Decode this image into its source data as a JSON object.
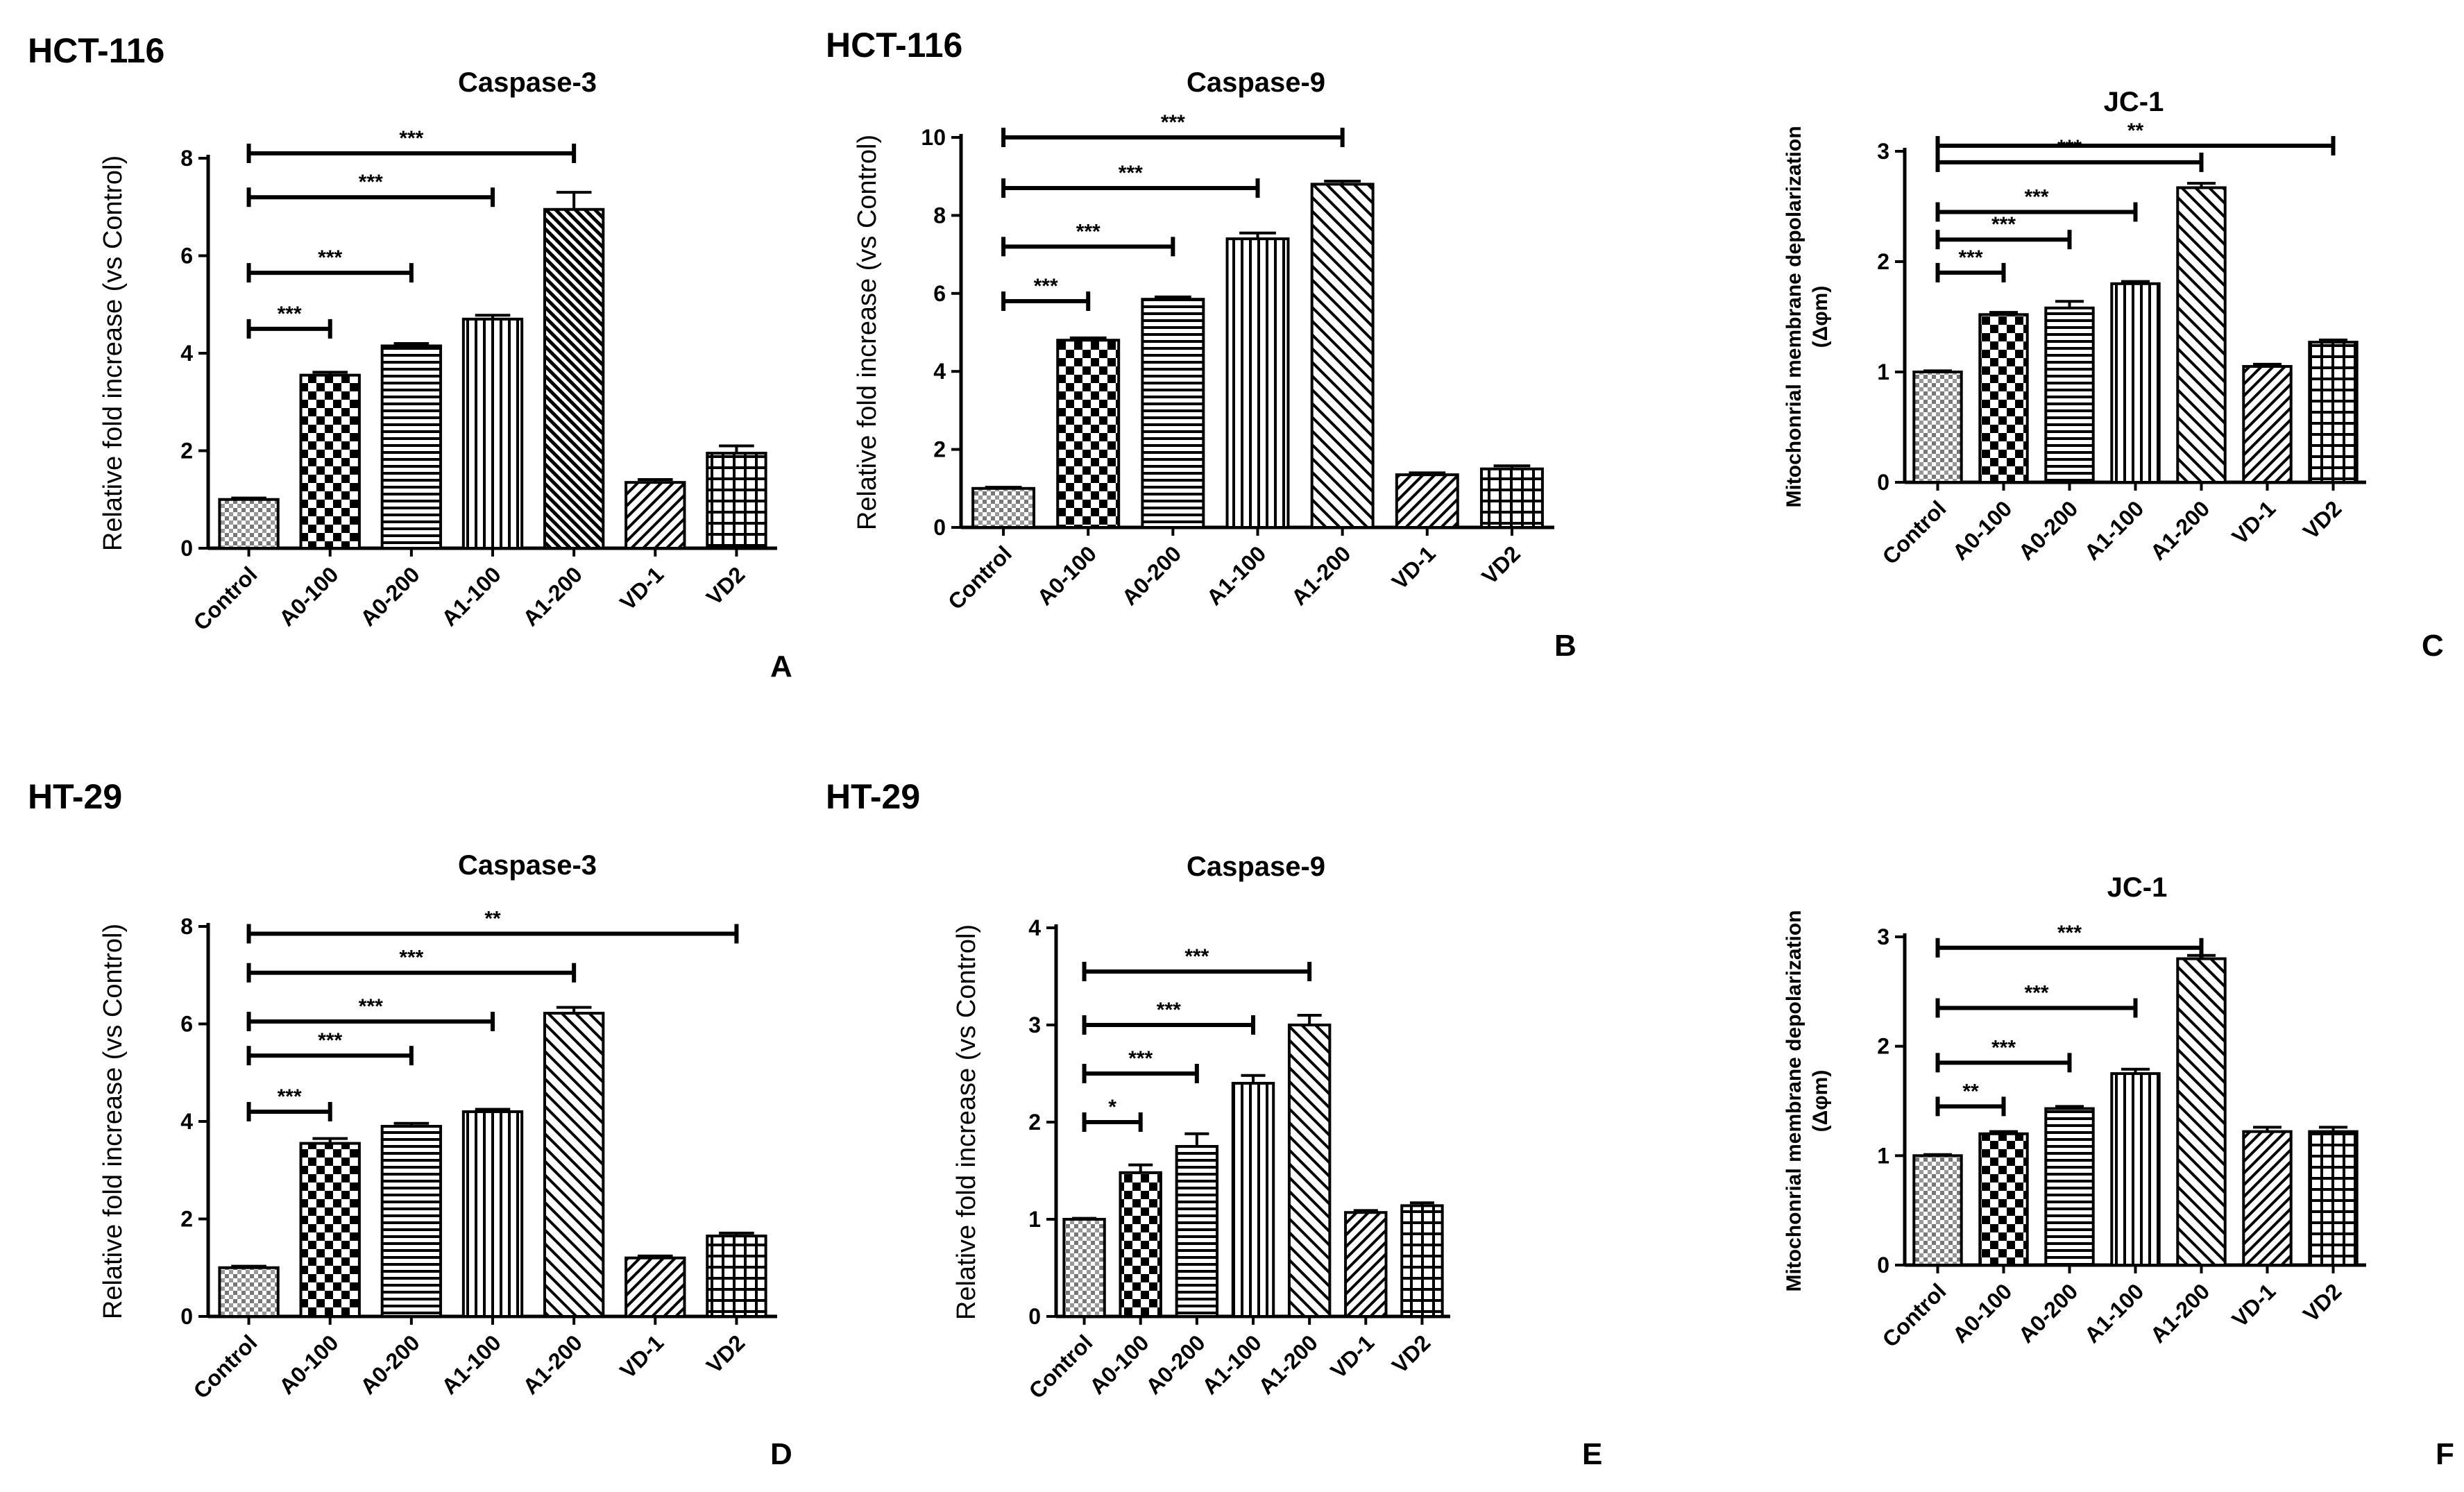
{
  "chart_data": [
    {
      "type": "bar",
      "panel": "A",
      "cell_line": "HCT-116",
      "title": "Caspase-3",
      "ylabel": "Relative fold increase (vs Control)",
      "categories": [
        "Control",
        "A0-100",
        "A0-200",
        "A1-100",
        "A1-200",
        "VD-1",
        "VD2"
      ],
      "values": [
        1.0,
        3.55,
        4.15,
        4.7,
        6.95,
        1.35,
        1.95
      ],
      "errors": [
        0.03,
        0.06,
        0.05,
        0.08,
        0.35,
        0.06,
        0.15
      ],
      "patterns": [
        "dots",
        "checker",
        "hlines",
        "vlines",
        "diag-dense",
        "diag-back",
        "grid"
      ],
      "ylim": [
        0,
        8
      ],
      "yticks": [
        0,
        2,
        4,
        6,
        8
      ],
      "significance": [
        {
          "from": "Control",
          "to": "A0-100",
          "y": 4.5,
          "label": "***"
        },
        {
          "from": "Control",
          "to": "A0-200",
          "y": 5.65,
          "label": "***"
        },
        {
          "from": "Control",
          "to": "A1-100",
          "y": 7.2,
          "label": "***"
        },
        {
          "from": "Control",
          "to": "A1-200",
          "y": 8.1,
          "label": "***"
        }
      ]
    },
    {
      "type": "bar",
      "panel": "B",
      "cell_line": "HCT-116",
      "title": "Caspase-9",
      "ylabel": "Relative fold increase (vs Control)",
      "categories": [
        "Control",
        "A0-100",
        "A0-200",
        "A1-100",
        "A1-200",
        "VD-1",
        "VD2"
      ],
      "values": [
        1.0,
        4.8,
        5.85,
        7.4,
        8.8,
        1.35,
        1.5
      ],
      "errors": [
        0.03,
        0.06,
        0.06,
        0.15,
        0.08,
        0.05,
        0.08
      ],
      "patterns": [
        "dots",
        "checker",
        "hlines",
        "vlines",
        "diag",
        "diag-back",
        "grid"
      ],
      "ylim": [
        0,
        10
      ],
      "yticks": [
        0,
        2,
        4,
        6,
        8,
        10
      ],
      "significance": [
        {
          "from": "Control",
          "to": "A0-100",
          "y": 5.8,
          "label": "***"
        },
        {
          "from": "Control",
          "to": "A0-200",
          "y": 7.2,
          "label": "***"
        },
        {
          "from": "Control",
          "to": "A1-100",
          "y": 8.7,
          "label": "***"
        },
        {
          "from": "Control",
          "to": "A1-200",
          "y": 10.0,
          "label": "***"
        }
      ]
    },
    {
      "type": "bar",
      "panel": "C",
      "cell_line": "",
      "title": "JC-1",
      "ylabel": "Mitochonrial membrane depolarization (Δφm)",
      "categories": [
        "Control",
        "A0-100",
        "A0-200",
        "A1-100",
        "A1-200",
        "VD-1",
        "VD2"
      ],
      "values": [
        1.0,
        1.52,
        1.58,
        1.8,
        2.67,
        1.05,
        1.27
      ],
      "errors": [
        0.01,
        0.02,
        0.06,
        0.02,
        0.04,
        0.02,
        0.02
      ],
      "patterns": [
        "dots",
        "checker",
        "hlines",
        "vlines",
        "diag",
        "diag-back",
        "grid"
      ],
      "ylim": [
        0,
        3
      ],
      "yticks": [
        0,
        1,
        2,
        3
      ],
      "significance": [
        {
          "from": "Control",
          "to": "A0-100",
          "y": 1.9,
          "label": "***"
        },
        {
          "from": "Control",
          "to": "A0-200",
          "y": 2.2,
          "label": "***"
        },
        {
          "from": "Control",
          "to": "A1-100",
          "y": 2.45,
          "label": "***"
        },
        {
          "from": "Control",
          "to": "A1-200",
          "y": 2.9,
          "label": "***"
        },
        {
          "from": "Control",
          "to": "VD2",
          "y": 3.05,
          "label": "**"
        }
      ]
    },
    {
      "type": "bar",
      "panel": "D",
      "cell_line": "HT-29",
      "title": "Caspase-3",
      "ylabel": "Relative fold increase (vs Control)",
      "categories": [
        "Control",
        "A0-100",
        "A0-200",
        "A1-100",
        "A1-200",
        "VD-1",
        "VD2"
      ],
      "values": [
        1.0,
        3.55,
        3.9,
        4.2,
        6.22,
        1.2,
        1.65
      ],
      "errors": [
        0.03,
        0.1,
        0.06,
        0.05,
        0.12,
        0.04,
        0.06
      ],
      "patterns": [
        "dots",
        "checker",
        "hlines",
        "vlines",
        "diag",
        "diag-back",
        "grid"
      ],
      "ylim": [
        0,
        8
      ],
      "yticks": [
        0,
        2,
        4,
        6,
        8
      ],
      "significance": [
        {
          "from": "Control",
          "to": "A0-100",
          "y": 4.2,
          "label": "***"
        },
        {
          "from": "Control",
          "to": "A0-200",
          "y": 5.35,
          "label": "***"
        },
        {
          "from": "Control",
          "to": "A1-100",
          "y": 6.05,
          "label": "***"
        },
        {
          "from": "Control",
          "to": "A1-200",
          "y": 7.05,
          "label": "***"
        },
        {
          "from": "Control",
          "to": "VD2",
          "y": 7.85,
          "label": "**"
        }
      ]
    },
    {
      "type": "bar",
      "panel": "E",
      "cell_line": "HT-29",
      "title": "Caspase-9",
      "ylabel": "Relative fold increase (vs Control)",
      "categories": [
        "Control",
        "A0-100",
        "A0-200",
        "A1-100",
        "A1-200",
        "VD-1",
        "VD2"
      ],
      "values": [
        1.0,
        1.48,
        1.75,
        2.4,
        3.0,
        1.07,
        1.14
      ],
      "errors": [
        0.01,
        0.08,
        0.13,
        0.08,
        0.1,
        0.02,
        0.03
      ],
      "patterns": [
        "dots",
        "checker",
        "hlines",
        "vlines",
        "diag",
        "diag-back",
        "grid"
      ],
      "ylim": [
        0,
        4
      ],
      "yticks": [
        0,
        1,
        2,
        3,
        4
      ],
      "significance": [
        {
          "from": "Control",
          "to": "A0-100",
          "y": 2.0,
          "label": "*"
        },
        {
          "from": "Control",
          "to": "A0-200",
          "y": 2.5,
          "label": "***"
        },
        {
          "from": "Control",
          "to": "A1-100",
          "y": 3.0,
          "label": "***"
        },
        {
          "from": "Control",
          "to": "A1-200",
          "y": 3.55,
          "label": "***"
        }
      ]
    },
    {
      "type": "bar",
      "panel": "F",
      "cell_line": "",
      "title": "JC-1",
      "ylabel": "Mitochonrial membrane depolarization (Δφm)",
      "categories": [
        "Control",
        "A0-100",
        "A0-200",
        "A1-100",
        "A1-200",
        "VD-1",
        "VD2"
      ],
      "values": [
        1.0,
        1.2,
        1.43,
        1.75,
        2.8,
        1.22,
        1.22
      ],
      "errors": [
        0.01,
        0.02,
        0.02,
        0.04,
        0.03,
        0.04,
        0.04
      ],
      "patterns": [
        "dots",
        "checker",
        "hlines",
        "vlines",
        "diag",
        "diag-back",
        "grid"
      ],
      "ylim": [
        0,
        3
      ],
      "yticks": [
        0,
        1,
        2,
        3
      ],
      "significance": [
        {
          "from": "Control",
          "to": "A0-100",
          "y": 1.45,
          "label": "**"
        },
        {
          "from": "Control",
          "to": "A0-200",
          "y": 1.85,
          "label": "***"
        },
        {
          "from": "Control",
          "to": "A1-100",
          "y": 2.35,
          "label": "***"
        },
        {
          "from": "Control",
          "to": "A1-200",
          "y": 2.9,
          "label": "***"
        }
      ]
    }
  ]
}
